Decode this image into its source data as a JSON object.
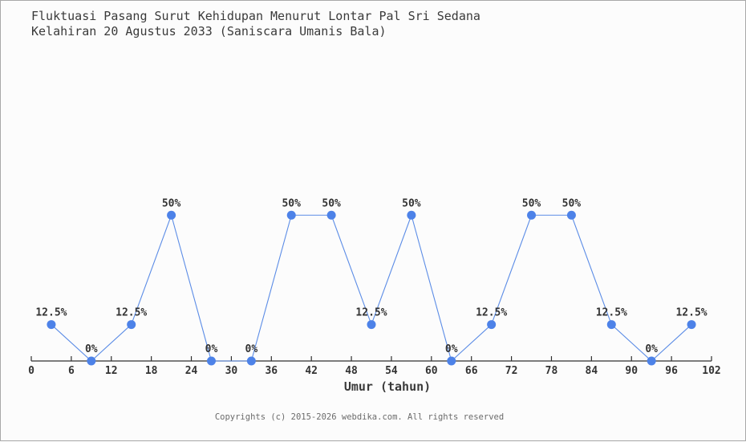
{
  "page": {
    "title_line1": "Fluktuasi Pasang Surut Kehidupan Menurut Lontar Pal Sri Sedana",
    "title_line2": "Kelahiran 20 Agustus 2033 (Saniscara Umanis Bala)",
    "footer": "Copyrights (c) 2015-2026 webdika.com. All rights reserved"
  },
  "chart_data": {
    "type": "line",
    "title": "Fluktuasi Pasang Surut Kehidupan Menurut Lontar Pal Sri Sedana / Kelahiran 20 Agustus 2033 (Saniscara Umanis Bala)",
    "xlabel": "Umur (tahun)",
    "ylabel": "",
    "x": [
      3,
      9,
      15,
      21,
      27,
      33,
      39,
      45,
      51,
      57,
      63,
      69,
      75,
      81,
      87,
      93,
      99
    ],
    "values": [
      12.5,
      0,
      12.5,
      50,
      0,
      0,
      50,
      50,
      12.5,
      50,
      0,
      12.5,
      50,
      50,
      12.5,
      0,
      12.5
    ],
    "point_labels": [
      "12.5%",
      "0%",
      "12.5%",
      "50%",
      "0%",
      "0%",
      "50%",
      "50%",
      "12.5%",
      "50%",
      "0%",
      "12.5%",
      "50%",
      "50%",
      "12.5%",
      "0%",
      "12.5%"
    ],
    "x_ticks": [
      0,
      6,
      12,
      18,
      24,
      30,
      36,
      42,
      48,
      54,
      60,
      66,
      72,
      78,
      84,
      90,
      96,
      102
    ],
    "xlim": [
      0,
      102
    ],
    "ylim": [
      0,
      100
    ],
    "grid": false,
    "legend": "none",
    "colors": {
      "marker": "#4d82e8",
      "line": "#5b8ce6",
      "axis": "#2f2f2f",
      "tick_label": "#333333",
      "point_label": "#333333"
    }
  }
}
